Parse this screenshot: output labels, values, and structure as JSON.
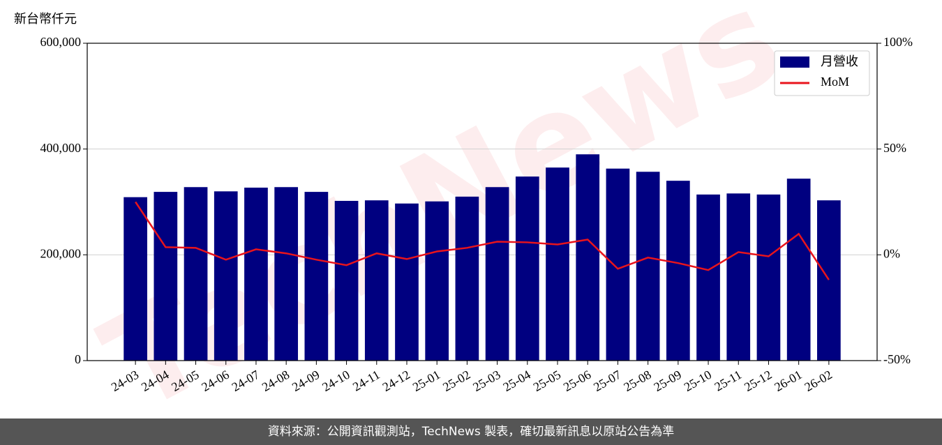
{
  "chart_data": {
    "type": "bar",
    "y_axis_label": "新台幣仟元",
    "watermark": "TechNews",
    "categories": [
      "24-03",
      "24-04",
      "24-05",
      "24-06",
      "24-07",
      "24-08",
      "24-09",
      "24-10",
      "24-11",
      "24-12",
      "25-01",
      "25-02",
      "25-03",
      "25-04",
      "25-05",
      "25-06",
      "25-07",
      "25-08",
      "25-09",
      "25-10",
      "25-11",
      "25-12",
      "26-01",
      "26-02"
    ],
    "series": [
      {
        "name": "月營收",
        "type": "bar",
        "color": "#000080",
        "values": [
          309000,
          319000,
          328000,
          320000,
          327000,
          328000,
          319000,
          302000,
          303000,
          297000,
          301000,
          310000,
          328000,
          348000,
          365000,
          390000,
          363000,
          357000,
          340000,
          314000,
          316000,
          314000,
          344000,
          303000
        ]
      },
      {
        "name": "MoM",
        "type": "line",
        "axis": "y2",
        "color": "#e8141c",
        "values": [
          25,
          3.6,
          3.3,
          -2.3,
          2.6,
          0.7,
          -2.3,
          -4.9,
          0.7,
          -2,
          1.6,
          3.3,
          6.2,
          5.9,
          4.9,
          7.2,
          -6.6,
          -1.3,
          -3.9,
          -7.2,
          1.3,
          -0.7,
          9.9,
          -11.8
        ]
      }
    ],
    "ylim": [
      0,
      600000
    ],
    "yticks": [
      0,
      {
        "value": 200000,
        "label": "200,000"
      },
      {
        "value": 400000,
        "label": "400,000"
      },
      {
        "value": 600000,
        "label": "600,000"
      }
    ],
    "y2lim": [
      -50,
      100
    ],
    "y2ticks": [
      {
        "value": -50,
        "label": "-50%"
      },
      {
        "value": 0,
        "label": "0%"
      },
      {
        "value": 50,
        "label": "50%"
      },
      {
        "value": 100,
        "label": "100%"
      }
    ],
    "grid": true,
    "legend": "upper right",
    "footer": "資料來源：公開資訊觀測站，TechNews 製表，確切最新訊息以原站公告為準"
  }
}
